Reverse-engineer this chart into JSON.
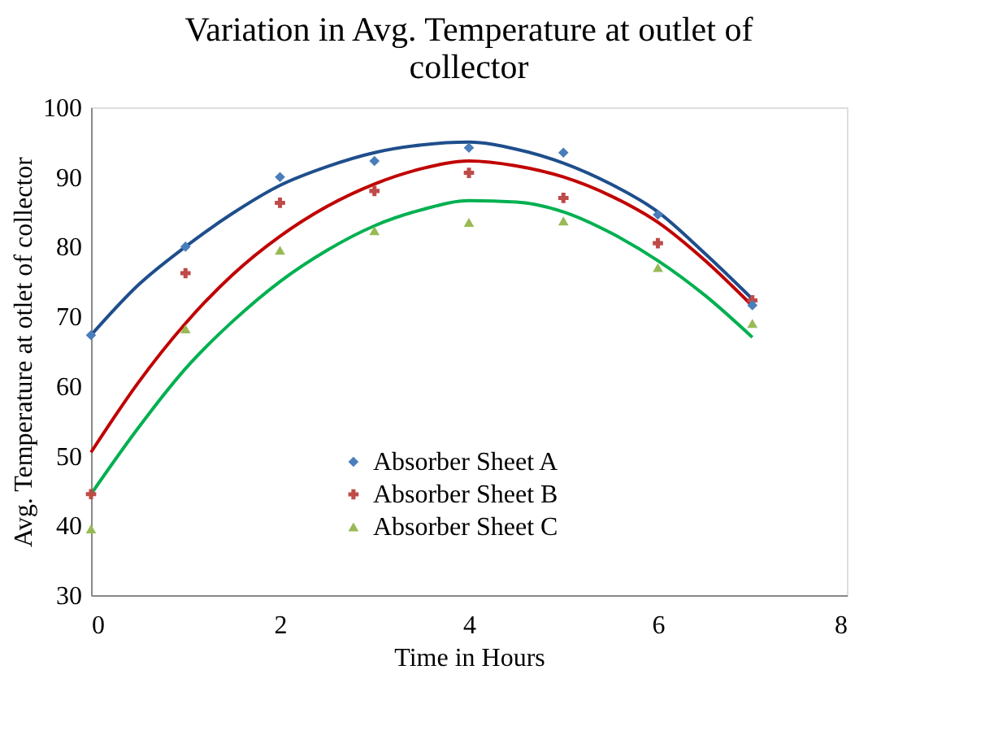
{
  "chart_data": {
    "type": "scatter",
    "title": "Variation in Avg. Temperature at outlet of collector",
    "xlabel": "Time in Hours",
    "ylabel": "Avg. Temperature at otlet of collector",
    "xlim": [
      0,
      8
    ],
    "xticks": [
      0,
      2,
      4,
      6,
      8
    ],
    "ylim": [
      30,
      100
    ],
    "yticks": [
      30,
      40,
      50,
      60,
      70,
      80,
      90,
      100
    ],
    "grid": false,
    "legend": "bottom",
    "x": [
      0,
      1,
      2,
      3,
      4,
      5,
      6,
      7
    ],
    "series": [
      {
        "name": "Absorber Sheet A",
        "marker": "diamond",
        "color": "#4a7ebb",
        "values": [
          67.3,
          80,
          90,
          92.3,
          94.2,
          93.5,
          84.6,
          71.6
        ]
      },
      {
        "name": "Absorber Sheet B",
        "marker": "cross",
        "color": "#be4b48",
        "values": [
          44.5,
          76.2,
          86.3,
          88,
          90.6,
          87,
          80.5,
          72.3
        ]
      },
      {
        "name": "Absorber Sheet C",
        "marker": "triangle",
        "color": "#98b954",
        "values": [
          39.5,
          68.2,
          79.5,
          82.3,
          83.5,
          83.7,
          77,
          69
        ]
      },
      {
        "type": "line",
        "color": "#1f4e8c",
        "x": [
          0,
          0.5,
          1,
          1.5,
          2,
          2.5,
          3,
          3.5,
          4,
          4.5,
          5,
          5.5,
          6,
          6.5,
          7
        ],
        "values": [
          67.3,
          74.5,
          80,
          84.8,
          88.8,
          91.5,
          93.5,
          94.6,
          95,
          94,
          92,
          89,
          85,
          79,
          72.5
        ]
      },
      {
        "type": "line",
        "color": "#c00000",
        "x": [
          0,
          0.5,
          1,
          1.5,
          2,
          2.5,
          3,
          3.5,
          4,
          4.5,
          5,
          5.5,
          6,
          6.5,
          7
        ],
        "values": [
          50.5,
          60.5,
          69,
          76,
          81.5,
          85.8,
          89,
          91.2,
          92.3,
          91.6,
          90,
          87.3,
          83.5,
          78,
          71.5
        ]
      },
      {
        "type": "line",
        "color": "#00b050",
        "x": [
          0,
          0.5,
          1,
          1.5,
          2,
          2.5,
          3,
          3.5,
          4,
          4.5,
          5,
          5.5,
          6,
          6.5,
          7
        ],
        "values": [
          44.5,
          54,
          62.5,
          69.3,
          75,
          79.5,
          83,
          85.3,
          86.6,
          86.4,
          85,
          82,
          78,
          73,
          67
        ]
      }
    ]
  }
}
